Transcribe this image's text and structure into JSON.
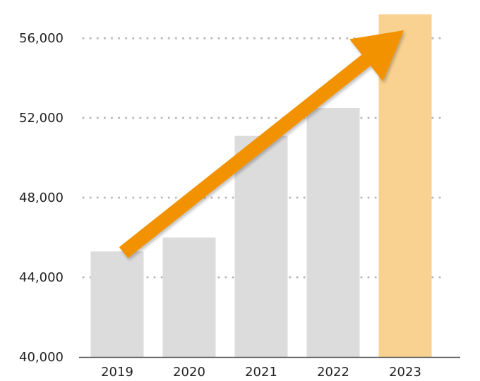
{
  "chart_data": {
    "type": "bar",
    "categories": [
      "2019",
      "2020",
      "2021",
      "2022",
      "2023"
    ],
    "values": [
      45300,
      46000,
      51100,
      52500,
      57200
    ],
    "y_ticks": [
      "40,000",
      "44,000",
      "48,000",
      "52,000",
      "56,000"
    ],
    "y_tick_values": [
      40000,
      44000,
      48000,
      52000,
      56000
    ],
    "ylim": [
      40000,
      57000
    ],
    "grid": "horizontal-dotted",
    "highlight_category": "2023",
    "trend_arrow": "up",
    "colors": {
      "bar": "#dcdcdc",
      "highlight_bar": "#f9d191",
      "arrow": "#f39200",
      "grid": "#b8b8b8",
      "axis": "#555555",
      "text": "#222222"
    }
  }
}
